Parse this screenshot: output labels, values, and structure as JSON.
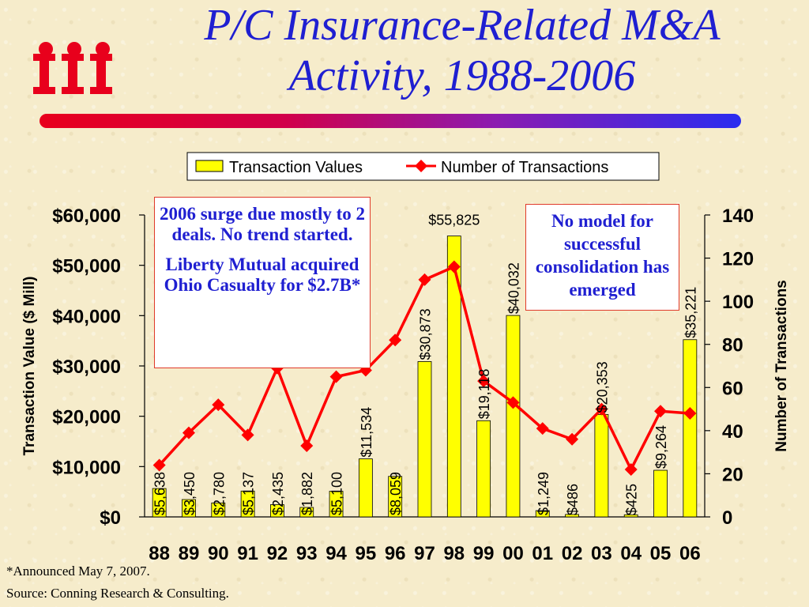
{
  "slide": {
    "title_line1": "P/C Insurance-Related M&A",
    "title_line2": "Activity, 1988-2006",
    "brand_color": "#e8001c",
    "title_color": "#1f1fd1"
  },
  "notes": {
    "left_p1": "2006 surge due mostly to 2 deals. No trend started.",
    "left_p2": "Liberty Mutual acquired Ohio Casualty for $2.7B*",
    "right": "No model for successful consolidation has emerged"
  },
  "footnotes": {
    "announced": "*Announced May 7, 2007.",
    "source": "Source: Conning Research & Consulting."
  },
  "chart_data": {
    "type": "bar",
    "categories": [
      "88",
      "89",
      "90",
      "91",
      "92",
      "93",
      "94",
      "95",
      "96",
      "97",
      "98",
      "99",
      "00",
      "01",
      "02",
      "03",
      "04",
      "05",
      "06"
    ],
    "ylabel": "Transaction Value ($ Mill)",
    "y2label": "Number of Transactions",
    "ylim": [
      0,
      60000
    ],
    "y2lim": [
      0,
      140
    ],
    "yticks": [
      "$0",
      "$10,000",
      "$20,000",
      "$30,000",
      "$40,000",
      "$50,000",
      "$60,000"
    ],
    "y2ticks": [
      "0",
      "20",
      "40",
      "60",
      "80",
      "100",
      "120",
      "140"
    ],
    "legend_position": "top",
    "series": [
      {
        "name": "Transaction Values",
        "kind": "bar",
        "color": "#ffff00",
        "values": [
          5638,
          3450,
          2780,
          5137,
          2435,
          1882,
          5100,
          11534,
          8059,
          30873,
          55825,
          19118,
          40032,
          1249,
          486,
          20353,
          425,
          9264,
          35221
        ],
        "labels": [
          "$5,638",
          "$3,450",
          "$2,780",
          "$5,137",
          "$2,435",
          "$1,882",
          "$5,100",
          "$11,534",
          "$8,059",
          "$30,873",
          "$55,825",
          "$19,118",
          "$40,032",
          "$1,249",
          "$486",
          "$20,353",
          "$425",
          "$9,264",
          "$35,221"
        ]
      },
      {
        "name": "Number of Transactions",
        "kind": "line",
        "axis": "right",
        "color": "#ff0000",
        "values": [
          24,
          39,
          52,
          38,
          69,
          33,
          65,
          68,
          82,
          110,
          116,
          63,
          53,
          41,
          36,
          50,
          22,
          49,
          48
        ]
      }
    ]
  }
}
